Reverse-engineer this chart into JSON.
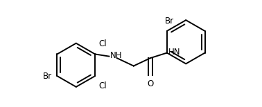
{
  "bg_color": "#ffffff",
  "line_color": "#000000",
  "text_color": "#000000",
  "font_size": 8.5,
  "line_width": 1.4,
  "fig_width": 3.78,
  "fig_height": 1.55,
  "dpi": 100,
  "labels": {
    "Cl_top": "Cl",
    "Cl_bottom": "Cl",
    "Br_left": "Br",
    "Br_right": "Br",
    "NH_left": "NH",
    "NH_right": "HN",
    "O": "O"
  }
}
